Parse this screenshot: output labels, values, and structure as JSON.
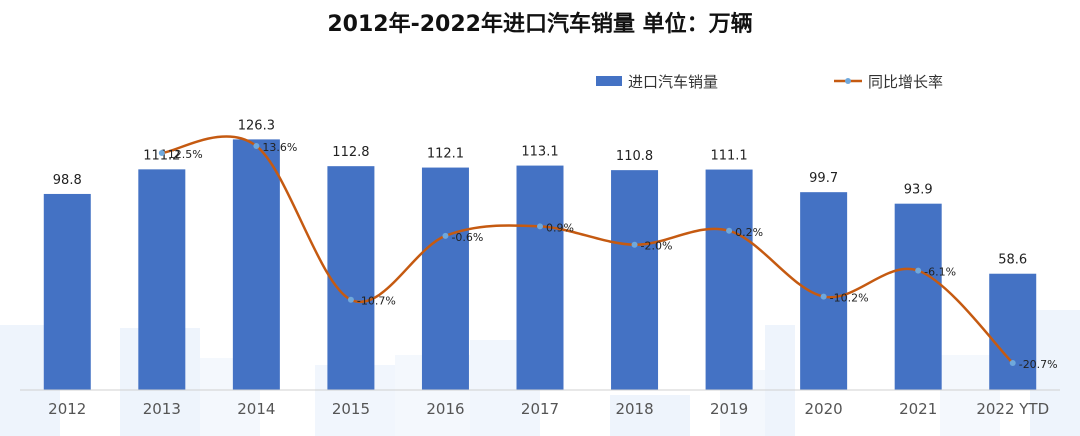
{
  "chart_data": {
    "type": "bar",
    "title": "2012年-2022年进口汽车销量  单位：万辆",
    "categories": [
      "2012",
      "2013",
      "2014",
      "2015",
      "2016",
      "2017",
      "2018",
      "2019",
      "2020",
      "2021",
      "2022 YTD"
    ],
    "series": [
      {
        "name": "进口汽车销量",
        "type": "bar",
        "values": [
          98.8,
          111.2,
          126.3,
          112.8,
          112.1,
          113.1,
          110.8,
          111.1,
          99.7,
          93.9,
          58.6
        ],
        "labels": [
          "98.8",
          "111.2",
          "126.3",
          "112.8",
          "112.1",
          "113.1",
          "110.8",
          "111.1",
          "99.7",
          "93.9",
          "58.6"
        ],
        "color": "#4472C4"
      },
      {
        "name": "同比增长率",
        "type": "line",
        "smooth": true,
        "values": [
          null,
          12.5,
          13.6,
          -10.7,
          -0.6,
          0.9,
          -2.0,
          0.2,
          -10.2,
          -6.1,
          -20.7
        ],
        "labels": [
          "",
          "12.5%",
          "13.6%",
          "-10.7%",
          "-0.6%",
          "0.9%",
          "-2.0%",
          "0.2%",
          "-10.2%",
          "-6.1%",
          "-20.7%"
        ],
        "color": "#C55A11",
        "marker_color": "#6FA8DC"
      }
    ],
    "ylim": [
      0,
      130
    ],
    "y2lim": [
      -25,
      17
    ],
    "xlabel": "",
    "ylabel": "",
    "grid": false,
    "legend_position": "top-right"
  }
}
